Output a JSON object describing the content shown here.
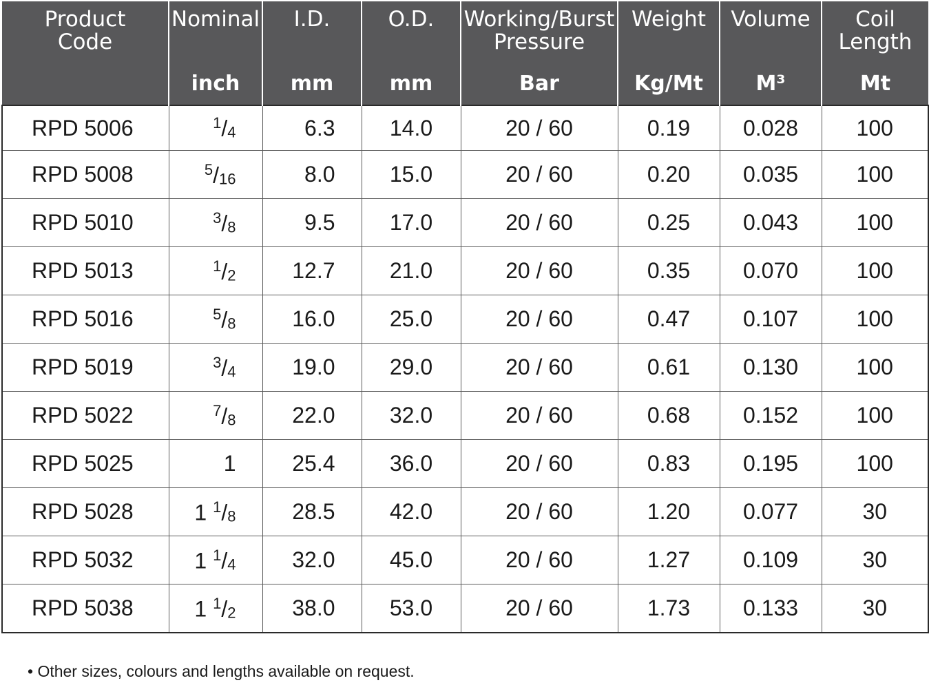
{
  "headers": [
    {
      "name": "Product\nCode",
      "unit": ""
    },
    {
      "name": "Nominal",
      "unit": "inch"
    },
    {
      "name": "I.D.",
      "unit": "mm"
    },
    {
      "name": "O.D.",
      "unit": "mm"
    },
    {
      "name": "Working/Burst\nPressure",
      "unit": "Bar"
    },
    {
      "name": "Weight",
      "unit": "Kg/Mt"
    },
    {
      "name": "Volume",
      "unit": "M³"
    },
    {
      "name": "Coil\nLength",
      "unit": "Mt"
    }
  ],
  "rows": [
    {
      "code": "RPD 5006",
      "nominal": "1/4",
      "id": "6.3",
      "od": "14.0",
      "pressure": "20 / 60",
      "weight": "0.19",
      "volume": "0.028",
      "coil": "100"
    },
    {
      "code": "RPD 5008",
      "nominal": "5/16",
      "id": "8.0",
      "od": "15.0",
      "pressure": "20 / 60",
      "weight": "0.20",
      "volume": "0.035",
      "coil": "100"
    },
    {
      "code": "RPD 5010",
      "nominal": "3/8",
      "id": "9.5",
      "od": "17.0",
      "pressure": "20 / 60",
      "weight": "0.25",
      "volume": "0.043",
      "coil": "100"
    },
    {
      "code": "RPD 5013",
      "nominal": "1/2",
      "id": "12.7",
      "od": "21.0",
      "pressure": "20 / 60",
      "weight": "0.35",
      "volume": "0.070",
      "coil": "100"
    },
    {
      "code": "RPD 5016",
      "nominal": "5/8",
      "id": "16.0",
      "od": "25.0",
      "pressure": "20 / 60",
      "weight": "0.47",
      "volume": "0.107",
      "coil": "100"
    },
    {
      "code": "RPD 5019",
      "nominal": "3/4",
      "id": "19.0",
      "od": "29.0",
      "pressure": "20 / 60",
      "weight": "0.61",
      "volume": "0.130",
      "coil": "100"
    },
    {
      "code": "RPD 5022",
      "nominal": "7/8",
      "id": "22.0",
      "od": "32.0",
      "pressure": "20 / 60",
      "weight": "0.68",
      "volume": "0.152",
      "coil": "100"
    },
    {
      "code": "RPD 5025",
      "nominal": "1",
      "id": "25.4",
      "od": "36.0",
      "pressure": "20 / 60",
      "weight": "0.83",
      "volume": "0.195",
      "coil": "100"
    },
    {
      "code": "RPD 5028",
      "nominal": "1 1/8",
      "id": "28.5",
      "od": "42.0",
      "pressure": "20 / 60",
      "weight": "1.20",
      "volume": "0.077",
      "coil": "30"
    },
    {
      "code": "RPD 5032",
      "nominal": "1 1/4",
      "id": "32.0",
      "od": "45.0",
      "pressure": "20 / 60",
      "weight": "1.27",
      "volume": "0.109",
      "coil": "30"
    },
    {
      "code": "RPD 5038",
      "nominal": "1 1/2",
      "id": "38.0",
      "od": "53.0",
      "pressure": "20 / 60",
      "weight": "1.73",
      "volume": "0.133",
      "coil": "30"
    }
  ],
  "footnote": "• Other sizes, colours and lengths available on request.",
  "colors": {
    "header_bg": "#58585a",
    "header_text": "#ffffff",
    "grid": "#5a5a5a"
  }
}
